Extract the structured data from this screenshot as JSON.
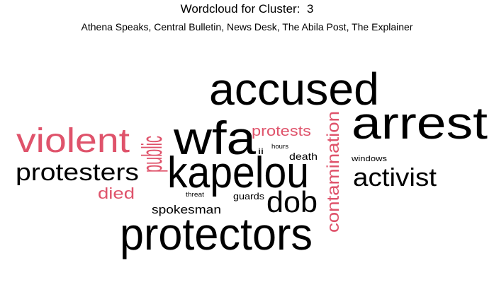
{
  "chart_data": {
    "type": "wordcloud",
    "title": "Wordcloud for Cluster:  3",
    "subtitle": "Athena Speaks, Central Bulletin, News Desk, The Abila Post, The Explainer",
    "colors": {
      "primary": "#000000",
      "accent": "#df536b"
    },
    "words": [
      {
        "text": "accused",
        "color": "primary"
      },
      {
        "text": "arrest",
        "color": "primary"
      },
      {
        "text": "wfa",
        "color": "primary"
      },
      {
        "text": "kapelou",
        "color": "primary"
      },
      {
        "text": "protectors",
        "color": "primary"
      },
      {
        "text": "violent",
        "color": "accent"
      },
      {
        "text": "public",
        "color": "accent"
      },
      {
        "text": "protesters",
        "color": "primary"
      },
      {
        "text": "activist",
        "color": "primary"
      },
      {
        "text": "dob",
        "color": "primary"
      },
      {
        "text": "contamination",
        "color": "accent"
      },
      {
        "text": "protests",
        "color": "accent"
      },
      {
        "text": "died",
        "color": "accent"
      },
      {
        "text": "spokesman",
        "color": "primary"
      },
      {
        "text": "death",
        "color": "primary"
      },
      {
        "text": "guards",
        "color": "primary"
      },
      {
        "text": "windows",
        "color": "primary"
      },
      {
        "text": "ii",
        "color": "primary"
      },
      {
        "text": "hours",
        "color": "primary"
      },
      {
        "text": "threat",
        "color": "primary"
      }
    ]
  }
}
